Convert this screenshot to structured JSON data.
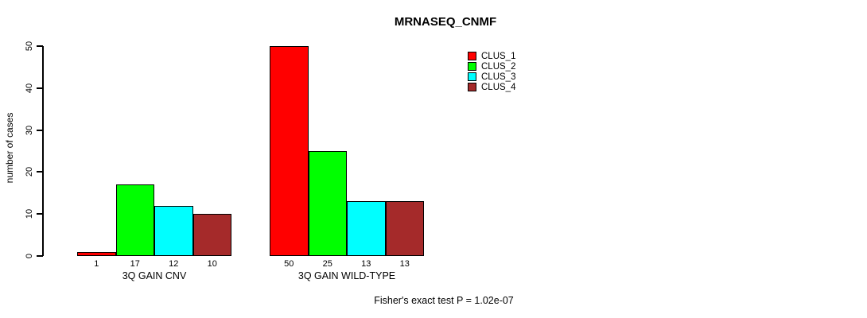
{
  "chart_data": {
    "type": "bar",
    "title": "MRNASEQ_CNMF",
    "xlabel": "",
    "ylabel": "number of cases",
    "ylim": [
      0,
      50
    ],
    "yticks": [
      0,
      10,
      20,
      30,
      40,
      50
    ],
    "grid": false,
    "legend_position": "top-right",
    "categories": [
      "3Q GAIN CNV",
      "3Q GAIN WILD-TYPE"
    ],
    "series": [
      {
        "name": "CLUS_1",
        "color": "#FF0000",
        "values": [
          1,
          50
        ]
      },
      {
        "name": "CLUS_2",
        "color": "#00FF00",
        "values": [
          17,
          25
        ]
      },
      {
        "name": "CLUS_3",
        "color": "#00FFFF",
        "values": [
          12,
          13
        ]
      },
      {
        "name": "CLUS_4",
        "color": "#A52A2A",
        "values": [
          10,
          13
        ]
      }
    ],
    "bar_value_labels": [
      [
        "1",
        "17",
        "12",
        "10"
      ],
      [
        "50",
        "25",
        "13",
        "13"
      ]
    ],
    "annotation": "Fisher's exact test P = 1.02e-07"
  }
}
